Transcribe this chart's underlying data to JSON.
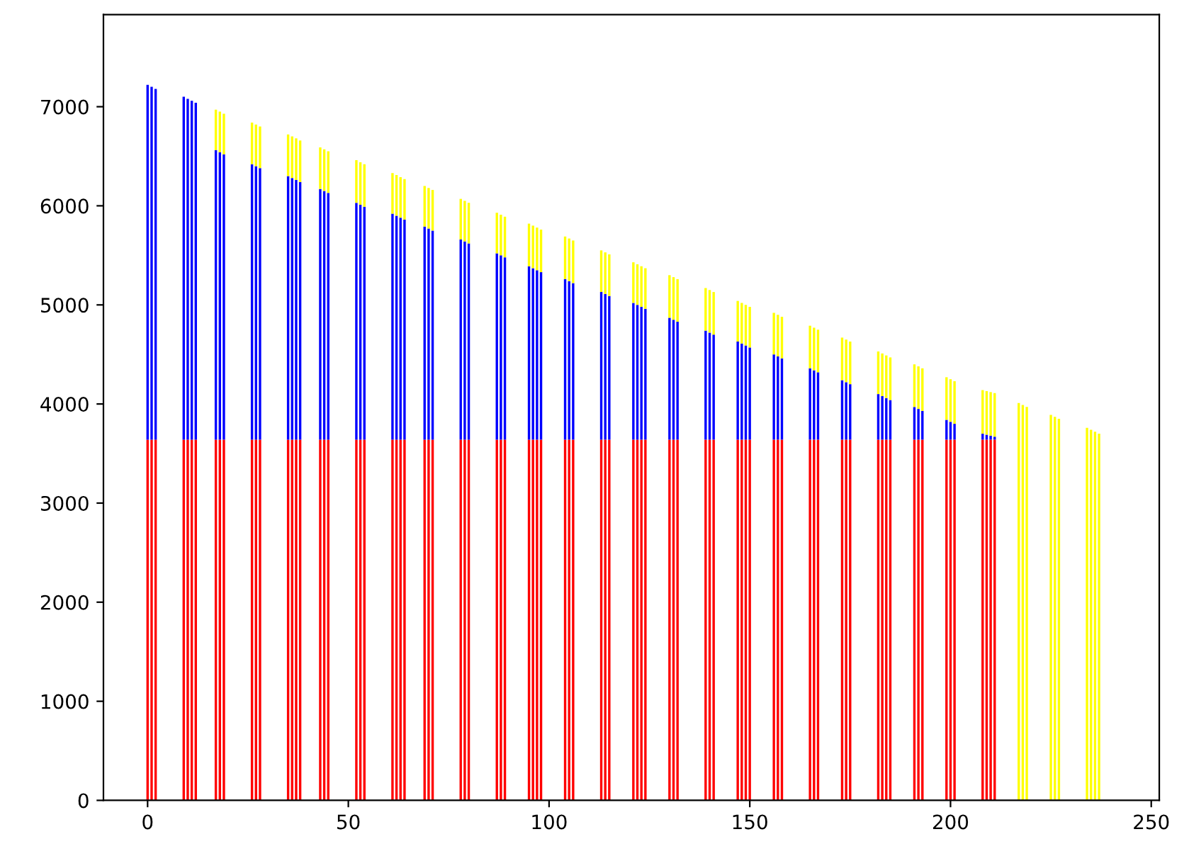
{
  "chart_data": {
    "type": "bar",
    "stacked": true,
    "x": [
      0,
      1,
      2,
      9,
      10,
      11,
      12,
      17,
      18,
      19,
      26,
      27,
      28,
      35,
      36,
      37,
      38,
      43,
      44,
      45,
      52,
      53,
      54,
      61,
      62,
      63,
      64,
      69,
      70,
      71,
      78,
      79,
      80,
      87,
      88,
      89,
      95,
      96,
      97,
      98,
      104,
      105,
      106,
      113,
      114,
      115,
      121,
      122,
      123,
      124,
      130,
      131,
      132,
      139,
      140,
      141,
      147,
      148,
      149,
      150,
      156,
      157,
      158,
      165,
      166,
      167,
      173,
      174,
      175,
      182,
      183,
      184,
      185,
      191,
      192,
      193,
      199,
      200,
      201,
      208,
      209,
      210,
      211,
      217,
      218,
      219,
      225,
      226,
      227,
      234,
      235,
      236,
      237
    ],
    "series": [
      {
        "color": "#ff0000",
        "values": [
          3640,
          3640,
          3640,
          3640,
          3640,
          3640,
          3640,
          3640,
          3640,
          3640,
          3640,
          3640,
          3640,
          3640,
          3640,
          3640,
          3640,
          3640,
          3640,
          3640,
          3640,
          3640,
          3640,
          3640,
          3640,
          3640,
          3640,
          3640,
          3640,
          3640,
          3640,
          3640,
          3640,
          3640,
          3640,
          3640,
          3640,
          3640,
          3640,
          3640,
          3640,
          3640,
          3640,
          3640,
          3640,
          3640,
          3640,
          3640,
          3640,
          3640,
          3640,
          3640,
          3640,
          3640,
          3640,
          3640,
          3640,
          3640,
          3640,
          3640,
          3640,
          3640,
          3640,
          3640,
          3640,
          3640,
          3640,
          3640,
          3640,
          3640,
          3640,
          3640,
          3640,
          3640,
          3640,
          3640,
          3640,
          3640,
          3640,
          3640,
          3640,
          3640,
          3640,
          null,
          null,
          null,
          null,
          null,
          null,
          null,
          null,
          null,
          null
        ]
      },
      {
        "color": "#0000ff",
        "values": [
          3580,
          3560,
          3540,
          3460,
          3440,
          3420,
          3400,
          2920,
          2900,
          2880,
          2780,
          2760,
          2740,
          2660,
          2640,
          2620,
          2600,
          2530,
          2510,
          2490,
          2390,
          2370,
          2350,
          2280,
          2260,
          2240,
          2220,
          2150,
          2130,
          2110,
          2020,
          2000,
          1980,
          1880,
          1860,
          1840,
          1750,
          1730,
          1710,
          1690,
          1620,
          1600,
          1580,
          1490,
          1470,
          1450,
          1380,
          1360,
          1340,
          1320,
          1230,
          1210,
          1190,
          1100,
          1080,
          1060,
          990,
          970,
          950,
          930,
          860,
          840,
          820,
          720,
          700,
          680,
          600,
          580,
          560,
          460,
          440,
          420,
          400,
          330,
          310,
          290,
          200,
          180,
          160,
          60,
          50,
          40,
          30,
          null,
          null,
          null,
          null,
          null,
          null,
          null,
          null,
          null,
          null
        ]
      },
      {
        "color": "#ffff00",
        "values": [
          null,
          null,
          null,
          null,
          null,
          null,
          null,
          410,
          410,
          410,
          420,
          420,
          420,
          420,
          420,
          420,
          420,
          420,
          420,
          420,
          430,
          430,
          430,
          410,
          410,
          410,
          410,
          410,
          410,
          410,
          410,
          410,
          410,
          410,
          410,
          410,
          430,
          430,
          430,
          430,
          430,
          430,
          430,
          420,
          420,
          420,
          410,
          410,
          410,
          410,
          430,
          430,
          430,
          430,
          430,
          430,
          410,
          410,
          410,
          410,
          420,
          420,
          420,
          430,
          430,
          430,
          430,
          430,
          430,
          430,
          430,
          430,
          430,
          430,
          430,
          430,
          430,
          430,
          430,
          440,
          440,
          440,
          440,
          4010,
          3990,
          3970,
          3890,
          3870,
          3850,
          3760,
          3740,
          3720,
          3700
        ]
      }
    ],
    "xlim": [
      -11,
      252
    ],
    "xticks": [
      0,
      50,
      100,
      150,
      200,
      250
    ],
    "ylim": [
      0,
      7930
    ],
    "yticks": [
      0,
      1000,
      2000,
      3000,
      4000,
      5000,
      6000,
      7000
    ],
    "grid": false,
    "legend": false
  }
}
